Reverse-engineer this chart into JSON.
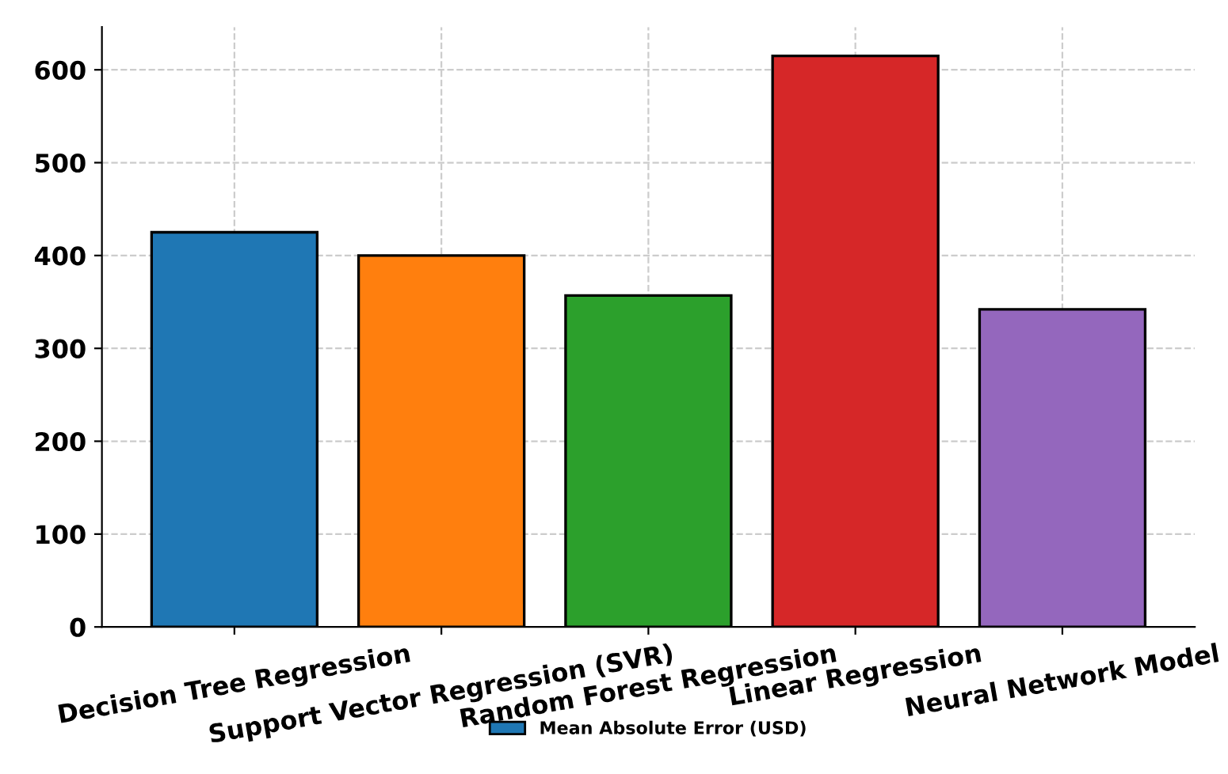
{
  "chart_data": {
    "type": "bar",
    "categories": [
      "Decision Tree Regression",
      "Support Vector Regression (SVR)",
      "Random Forest Regression",
      "Linear Regression",
      "Neural Network Model"
    ],
    "series": [
      {
        "name": "Mean Absolute Error (USD)",
        "color": "#1f77b4",
        "colors": [
          "#1f77b4",
          "#ff7f0e",
          "#2ca02c",
          "#d62728",
          "#9467bd"
        ],
        "values": [
          425,
          400,
          357,
          615,
          342
        ]
      }
    ],
    "ylim": [
      0,
      646
    ],
    "yticks": [
      0,
      100,
      200,
      300,
      400,
      500,
      600
    ],
    "grid": true,
    "legend": "bottom"
  }
}
